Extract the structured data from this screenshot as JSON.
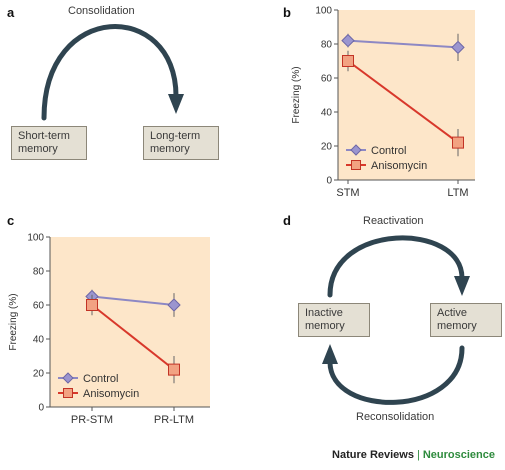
{
  "panels": {
    "a": {
      "letter": "a",
      "arc_label": "Consolidation",
      "left_box": [
        "Short-term",
        "memory"
      ],
      "right_box": [
        "Long-term",
        "memory"
      ]
    },
    "d": {
      "letter": "d",
      "top_label": "Reactivation",
      "bottom_label": "Reconsolidation",
      "left_box": [
        "Inactive",
        "memory"
      ],
      "right_box": [
        "Active",
        "memory"
      ]
    },
    "b": {
      "letter": "b"
    },
    "c": {
      "letter": "c"
    }
  },
  "colors": {
    "control": "#9b95cf",
    "control_line": "#8d88c4",
    "anisomycin": "#f2a282",
    "anisomycin_line": "#d8382b",
    "chart_bg": "#fde6c9",
    "arrow": "#2f4450"
  },
  "chart_data": [
    {
      "panel": "b",
      "type": "line",
      "categories": [
        "STM",
        "LTM"
      ],
      "ylabel": "Freezing (%)",
      "ylim": [
        0,
        100
      ],
      "yticks": [
        0,
        20,
        40,
        60,
        80,
        100
      ],
      "legend_position": "bottom-left",
      "series": [
        {
          "name": "Control",
          "values": [
            82,
            78
          ],
          "errors": [
            4,
            8
          ]
        },
        {
          "name": "Anisomycin",
          "values": [
            70,
            22
          ],
          "errors": [
            6,
            8
          ]
        }
      ]
    },
    {
      "panel": "c",
      "type": "line",
      "categories": [
        "PR-STM",
        "PR-LTM"
      ],
      "ylabel": "Freezing (%)",
      "ylim": [
        0,
        100
      ],
      "yticks": [
        0,
        20,
        40,
        60,
        80,
        100
      ],
      "legend_position": "bottom-left",
      "series": [
        {
          "name": "Control",
          "values": [
            65,
            60
          ],
          "errors": [
            4,
            7
          ]
        },
        {
          "name": "Anisomycin",
          "values": [
            60,
            22
          ],
          "errors": [
            6,
            8
          ]
        }
      ]
    }
  ],
  "footer": {
    "journal": "Nature Reviews",
    "separator": "|",
    "field": "Neuroscience"
  }
}
